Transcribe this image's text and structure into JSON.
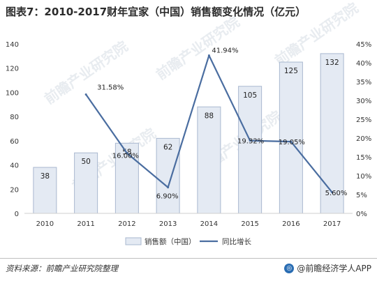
{
  "title": "图表7：2010-2017财年宜家（中国）销售额变化情况（亿元）",
  "source": "资料来源：前瞻产业研究院整理",
  "brand": "@前瞻经济学人APP",
  "watermark": "前瞻产业研究院",
  "chart_data": {
    "type": "bar",
    "categories": [
      "2010",
      "2011",
      "2012",
      "2013",
      "2014",
      "2015",
      "2016",
      "2017"
    ],
    "series": [
      {
        "name": "销售额（中国）",
        "type": "bar",
        "axis": "left",
        "values": [
          38,
          50,
          58,
          62,
          88,
          105,
          125,
          132
        ],
        "labels": [
          "38",
          "50",
          "58",
          "62",
          "88",
          "105",
          "125",
          "132"
        ]
      },
      {
        "name": "同比增长",
        "type": "line",
        "axis": "right",
        "values": [
          null,
          31.58,
          16.0,
          6.9,
          41.94,
          19.32,
          19.05,
          5.6
        ],
        "labels": [
          null,
          "31.58%",
          "16.00%",
          "6.90%",
          "41.94%",
          "19.32%",
          "19.05%",
          "5.60%"
        ]
      }
    ],
    "ylim_left": [
      0,
      140
    ],
    "yticks_left": [
      "0",
      "20",
      "40",
      "60",
      "80",
      "100",
      "120",
      "140"
    ],
    "ylim_right": [
      0,
      45
    ],
    "yticks_right": [
      "0%",
      "5%",
      "10%",
      "15%",
      "20%",
      "25%",
      "30%",
      "35%",
      "40%",
      "45%"
    ],
    "grid": false,
    "legend_position": "bottom",
    "colors": {
      "bar_fill": "#e4eaf3",
      "bar_stroke": "#a9b8cf",
      "line": "#4a6da0",
      "axis_text": "#333333"
    }
  }
}
